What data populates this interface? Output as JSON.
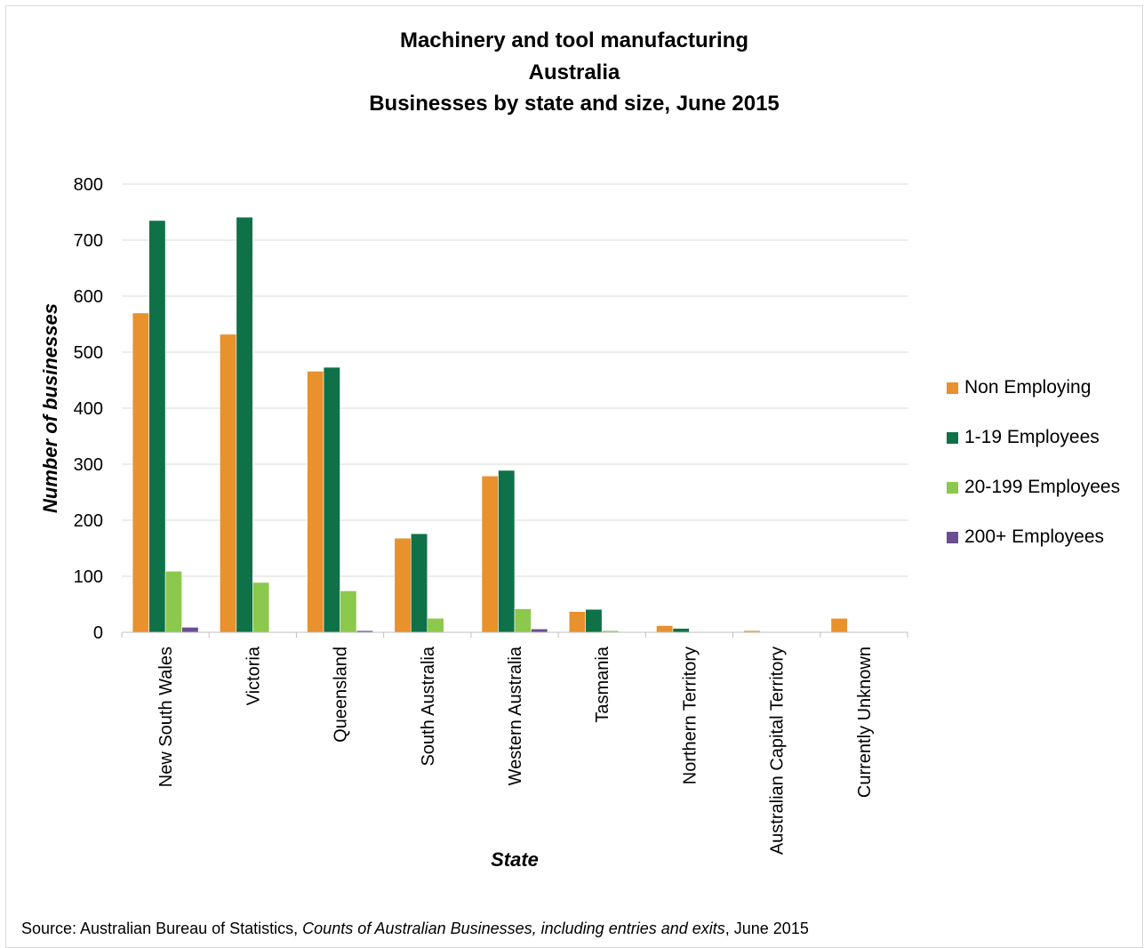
{
  "chart_data": {
    "type": "bar",
    "title": [
      "Machinery and tool manufacturing",
      "Australia",
      "Businesses by state and size, June 2015"
    ],
    "xlabel": "State",
    "ylabel": "Number of businesses",
    "ylim": [
      0,
      800
    ],
    "yticks": [
      "0",
      "100",
      "200",
      "300",
      "400",
      "500",
      "600",
      "700",
      "800"
    ],
    "grid": true,
    "legend_position": "right",
    "categories": [
      "New South Wales",
      "Victoria",
      "Queensland",
      "South Australia",
      "Western Australia",
      "Tasmania",
      "Northern Territory",
      "Australian Capital Territory",
      "Currently Unknown"
    ],
    "series": [
      {
        "name": "Non Employing",
        "color": "#e8912d",
        "values": [
          570,
          532,
          466,
          168,
          279,
          37,
          12,
          3,
          25
        ]
      },
      {
        "name": "1-19 Employees",
        "color": "#0f7148",
        "values": [
          735,
          741,
          473,
          176,
          289,
          41,
          7,
          0,
          0
        ]
      },
      {
        "name": "20-199 Employees",
        "color": "#8cc84b",
        "values": [
          109,
          89,
          74,
          25,
          42,
          3,
          0,
          0,
          0
        ]
      },
      {
        "name": "200+ Employees",
        "color": "#6a4e92",
        "values": [
          9,
          0,
          3,
          0,
          6,
          0,
          0,
          0,
          0
        ]
      }
    ]
  },
  "source": {
    "prefix": "Source: Australian Bureau of Statistics, ",
    "publication": "Counts of Australian Businesses, including entries and exits",
    "suffix": ", June 2015"
  }
}
